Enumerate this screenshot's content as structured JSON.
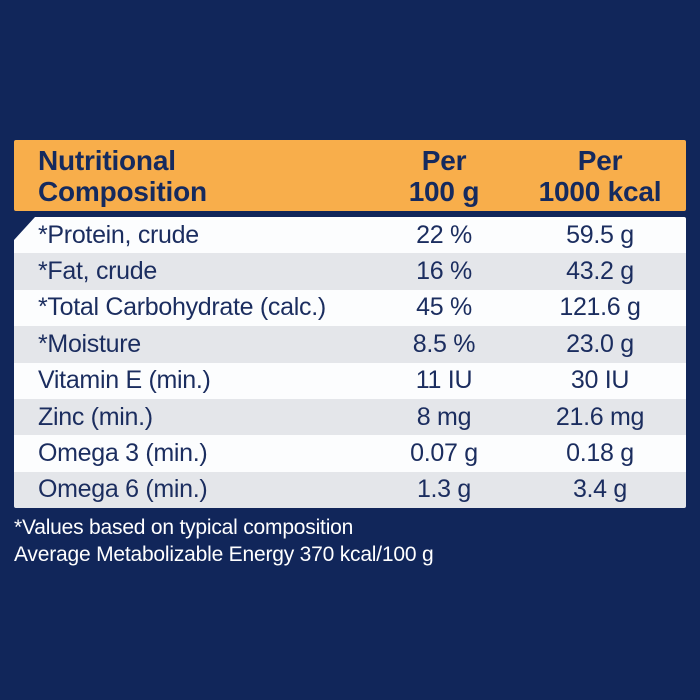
{
  "colors": {
    "background_navy": "#11265A",
    "header_orange": "#F8AE4B",
    "row_white": "#FCFDFE",
    "row_gray": "#E4E6EA",
    "text_navy": "#1B2D5F",
    "footnote_white": "#FFFFFF"
  },
  "header": {
    "title_line1": "Nutritional",
    "title_line2": "Composition",
    "col2_line1": "Per",
    "col2_line2": "100 g",
    "col3_line1": "Per",
    "col3_line2": "1000 kcal"
  },
  "table": {
    "rows": [
      {
        "label": "*Protein, crude",
        "per100": "22 %",
        "per1000": "59.5 g"
      },
      {
        "label": "*Fat, crude",
        "per100": "16 %",
        "per1000": "43.2 g"
      },
      {
        "label": "*Total Carbohydrate (calc.)",
        "per100": "45 %",
        "per1000": "121.6 g"
      },
      {
        "label": "*Moisture",
        "per100": "8.5 %",
        "per1000": "23.0 g"
      },
      {
        "label": "Vitamin E (min.)",
        "per100": "11 IU",
        "per1000": "30 IU"
      },
      {
        "label": "Zinc (min.)",
        "per100": "8 mg",
        "per1000": "21.6 mg"
      },
      {
        "label": "Omega 3 (min.)",
        "per100": "0.07 g",
        "per1000": "0.18 g"
      },
      {
        "label": "Omega 6 (min.)",
        "per100": "1.3 g",
        "per1000": "3.4 g"
      }
    ]
  },
  "footnotes": {
    "line1": "*Values based on typical composition",
    "line2": "Average Metabolizable Energy 370 kcal/100 g"
  }
}
